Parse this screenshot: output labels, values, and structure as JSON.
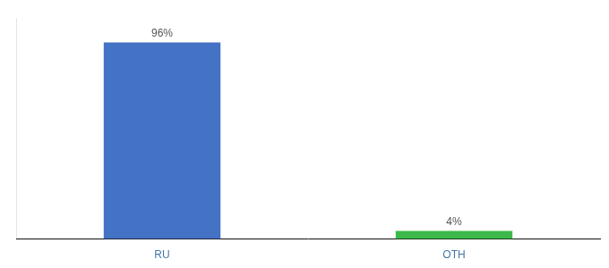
{
  "chart_data": {
    "type": "bar",
    "categories": [
      "RU",
      "OTH"
    ],
    "values": [
      96,
      4
    ],
    "value_labels": [
      "96%",
      "4%"
    ],
    "colors": [
      "#4472c4",
      "#3cb94a"
    ],
    "ylim": [
      0,
      108
    ],
    "yticks": [],
    "grid": false,
    "data_labels": true,
    "tick_labels": "x"
  }
}
